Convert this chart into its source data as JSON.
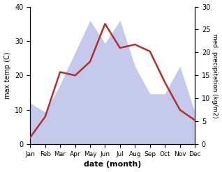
{
  "months": [
    "Jan",
    "Feb",
    "Mar",
    "Apr",
    "May",
    "Jun",
    "Jul",
    "Aug",
    "Sep",
    "Oct",
    "Nov",
    "Dec"
  ],
  "temperature": [
    2,
    8,
    21,
    20,
    24,
    35,
    28,
    29,
    27,
    18,
    10,
    7
  ],
  "precipitation": [
    9,
    7,
    13,
    20,
    27,
    22,
    27,
    17,
    11,
    11,
    17,
    7
  ],
  "temp_color": "#b03030",
  "precip_fill_color": "#c5caec",
  "xlabel": "date (month)",
  "ylabel_left": "max temp (C)",
  "ylabel_right": "med. precipitation (kg/m2)",
  "ylim_left": [
    0,
    40
  ],
  "ylim_right": [
    0,
    30
  ],
  "yticks_left": [
    0,
    10,
    20,
    30,
    40
  ],
  "yticks_right": [
    0,
    5,
    10,
    15,
    20,
    25,
    30
  ]
}
